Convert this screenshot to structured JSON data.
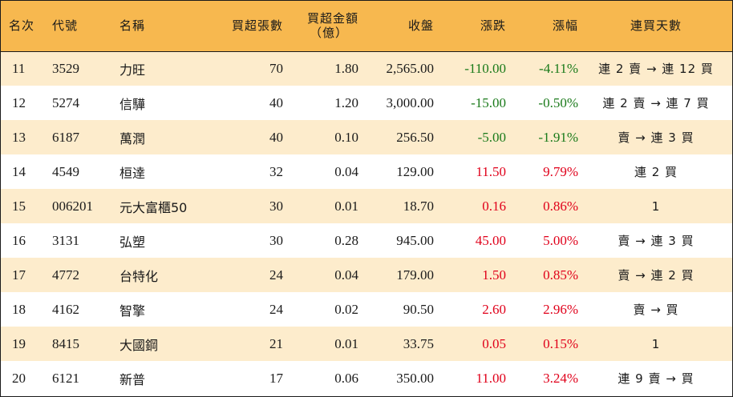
{
  "headers": {
    "rank": "名次",
    "code": "代號",
    "name": "名稱",
    "net_buy_lots": "買超張數",
    "net_buy_amount_line1": "買超金額",
    "net_buy_amount_line2": "（億）",
    "close": "收盤",
    "change": "漲跌",
    "change_pct": "漲幅",
    "consecutive_days": "連買天數"
  },
  "rows": [
    {
      "rank": "11",
      "code": "3529",
      "name": "力旺",
      "lots": "70",
      "amount": "1.80",
      "close": "2,565.00",
      "change": "-110.00",
      "pct": "-4.11%",
      "dir": "neg",
      "days": "連 2 賣 → 連 12 買"
    },
    {
      "rank": "12",
      "code": "5274",
      "name": "信驊",
      "lots": "40",
      "amount": "1.20",
      "close": "3,000.00",
      "change": "-15.00",
      "pct": "-0.50%",
      "dir": "neg",
      "days": "連 2 賣 → 連 7 買"
    },
    {
      "rank": "13",
      "code": "6187",
      "name": "萬潤",
      "lots": "40",
      "amount": "0.10",
      "close": "256.50",
      "change": "-5.00",
      "pct": "-1.91%",
      "dir": "neg",
      "days": "賣 → 連 3 買"
    },
    {
      "rank": "14",
      "code": "4549",
      "name": "桓達",
      "lots": "32",
      "amount": "0.04",
      "close": "129.00",
      "change": "11.50",
      "pct": "9.79%",
      "dir": "pos",
      "days": "連 2 買"
    },
    {
      "rank": "15",
      "code": "006201",
      "name": "元大富櫃50",
      "lots": "30",
      "amount": "0.01",
      "close": "18.70",
      "change": "0.16",
      "pct": "0.86%",
      "dir": "pos",
      "days": "1"
    },
    {
      "rank": "16",
      "code": "3131",
      "name": "弘塑",
      "lots": "30",
      "amount": "0.28",
      "close": "945.00",
      "change": "45.00",
      "pct": "5.00%",
      "dir": "pos",
      "days": "賣 → 連 3 買"
    },
    {
      "rank": "17",
      "code": "4772",
      "name": "台特化",
      "lots": "24",
      "amount": "0.04",
      "close": "179.00",
      "change": "1.50",
      "pct": "0.85%",
      "dir": "pos",
      "days": "賣 → 連 2 買"
    },
    {
      "rank": "18",
      "code": "4162",
      "name": "智擎",
      "lots": "24",
      "amount": "0.02",
      "close": "90.50",
      "change": "2.60",
      "pct": "2.96%",
      "dir": "pos",
      "days": "賣 → 買"
    },
    {
      "rank": "19",
      "code": "8415",
      "name": "大國鋼",
      "lots": "21",
      "amount": "0.01",
      "close": "33.75",
      "change": "0.05",
      "pct": "0.15%",
      "dir": "pos",
      "days": "1"
    },
    {
      "rank": "20",
      "code": "6121",
      "name": "新普",
      "lots": "17",
      "amount": "0.06",
      "close": "350.00",
      "change": "11.00",
      "pct": "3.24%",
      "dir": "pos",
      "days": "連 9 賣 → 買"
    }
  ],
  "colors": {
    "header_bg": "#f7b84f",
    "stripe_bg": "#fdeccc",
    "negative": "#1a7a1a",
    "positive": "#e0001a"
  }
}
